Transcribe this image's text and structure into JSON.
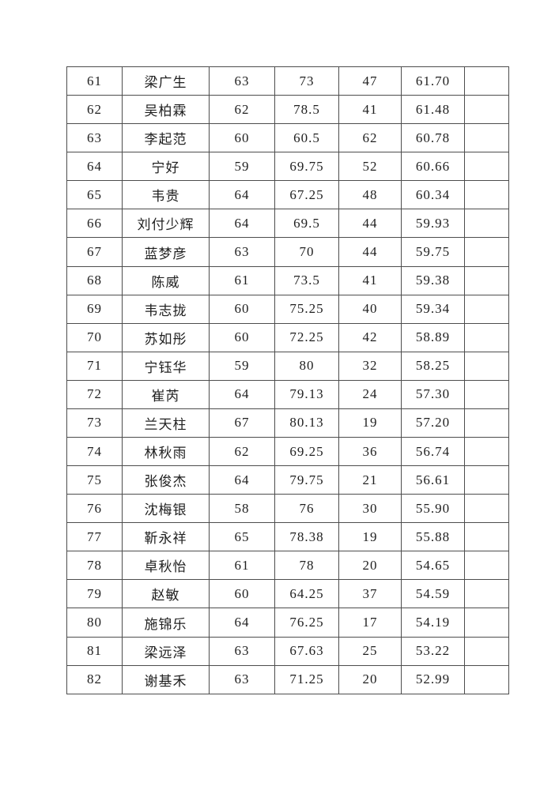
{
  "page": {
    "background_color": "#ffffff"
  },
  "table": {
    "border_color": "#4d4d4d",
    "text_color": "#1f1f1f",
    "column_count": 7,
    "rows": [
      [
        "61",
        "梁广生",
        "63",
        "73",
        "47",
        "61.70",
        ""
      ],
      [
        "62",
        "吴柏霖",
        "62",
        "78.5",
        "41",
        "61.48",
        ""
      ],
      [
        "63",
        "李起范",
        "60",
        "60.5",
        "62",
        "60.78",
        ""
      ],
      [
        "64",
        "宁好",
        "59",
        "69.75",
        "52",
        "60.66",
        ""
      ],
      [
        "65",
        "韦贵",
        "64",
        "67.25",
        "48",
        "60.34",
        ""
      ],
      [
        "66",
        "刘付少辉",
        "64",
        "69.5",
        "44",
        "59.93",
        ""
      ],
      [
        "67",
        "蓝梦彦",
        "63",
        "70",
        "44",
        "59.75",
        ""
      ],
      [
        "68",
        "陈威",
        "61",
        "73.5",
        "41",
        "59.38",
        ""
      ],
      [
        "69",
        "韦志拢",
        "60",
        "75.25",
        "40",
        "59.34",
        ""
      ],
      [
        "70",
        "苏如彤",
        "60",
        "72.25",
        "42",
        "58.89",
        ""
      ],
      [
        "71",
        "宁钰华",
        "59",
        "80",
        "32",
        "58.25",
        ""
      ],
      [
        "72",
        "崔芮",
        "64",
        "79.13",
        "24",
        "57.30",
        ""
      ],
      [
        "73",
        "兰天柱",
        "67",
        "80.13",
        "19",
        "57.20",
        ""
      ],
      [
        "74",
        "林秋雨",
        "62",
        "69.25",
        "36",
        "56.74",
        ""
      ],
      [
        "75",
        "张俊杰",
        "64",
        "79.75",
        "21",
        "56.61",
        ""
      ],
      [
        "76",
        "沈梅银",
        "58",
        "76",
        "30",
        "55.90",
        ""
      ],
      [
        "77",
        "靳永祥",
        "65",
        "78.38",
        "19",
        "55.88",
        ""
      ],
      [
        "78",
        "卓秋怡",
        "61",
        "78",
        "20",
        "54.65",
        ""
      ],
      [
        "79",
        "赵敏",
        "60",
        "64.25",
        "37",
        "54.59",
        ""
      ],
      [
        "80",
        "施锦乐",
        "64",
        "76.25",
        "17",
        "54.19",
        ""
      ],
      [
        "81",
        "梁远泽",
        "63",
        "67.63",
        "25",
        "53.22",
        ""
      ],
      [
        "82",
        "谢基禾",
        "63",
        "71.25",
        "20",
        "52.99",
        ""
      ]
    ]
  }
}
